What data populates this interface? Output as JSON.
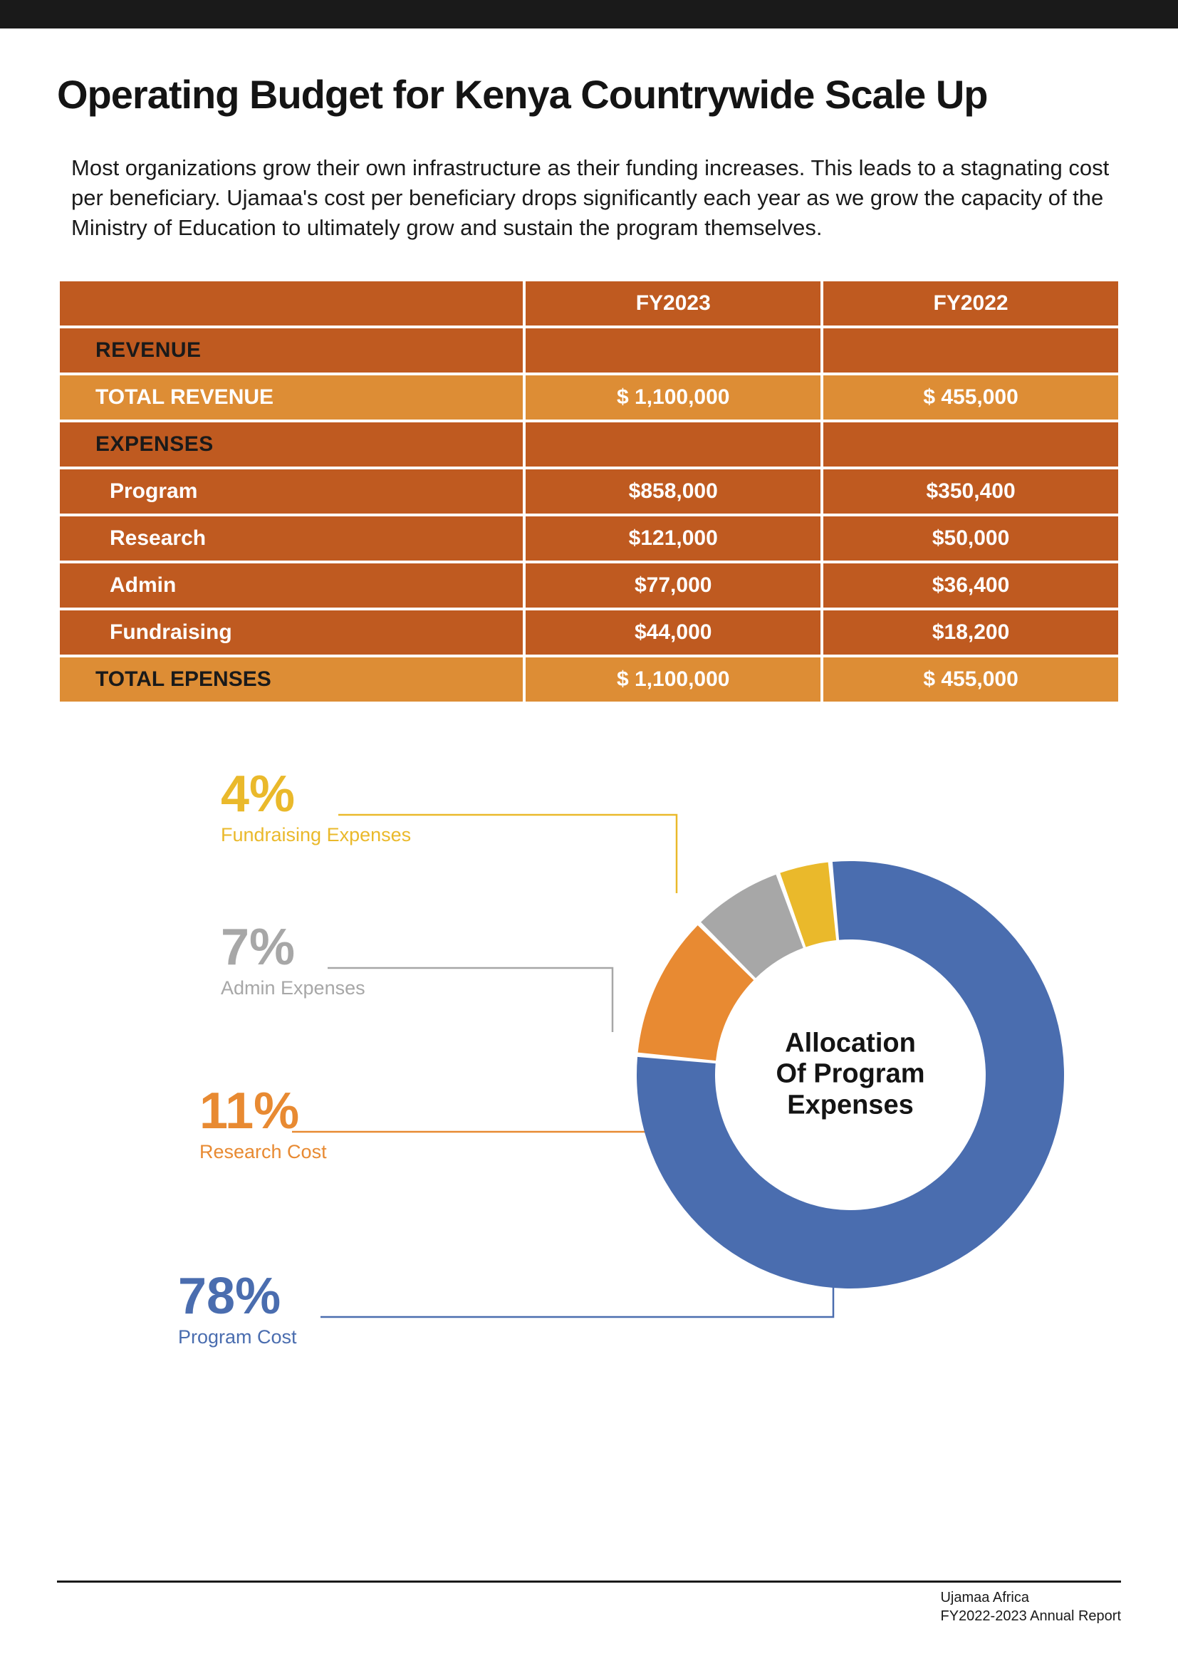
{
  "title": "Operating Budget for Kenya Countrywide Scale Up",
  "intro": "Most organizations grow their own infrastructure as their funding increases. This leads to a stagnating cost per beneficiary. Ujamaa's cost per beneficiary drops significantly each year as we grow the capacity of the Ministry of Education to ultimately grow and sustain the program themselves.",
  "table": {
    "colors": {
      "dark": "#bf5a20",
      "light": "#dd8d35",
      "text_dark": "#1a1a1a",
      "text_light": "#ffffff"
    },
    "header": {
      "y1": "FY2023",
      "y2": "FY2022"
    },
    "revenue_label": "REVENUE",
    "total_revenue": {
      "label": "TOTAL REVENUE",
      "y1": "$ 1,100,000",
      "y2": "$ 455,000"
    },
    "expenses_label": "EXPENSES",
    "expenses": [
      {
        "label": "Program",
        "y1": "$858,000",
        "y2": "$350,400"
      },
      {
        "label": "Research",
        "y1": "$121,000",
        "y2": "$50,000"
      },
      {
        "label": "Admin",
        "y1": "$77,000",
        "y2": "$36,400"
      },
      {
        "label": "Fundraising",
        "y1": "$44,000",
        "y2": "$18,200"
      }
    ],
    "total_expenses": {
      "label": "TOTAL EPENSES",
      "y1": "$ 1,100,000",
      "y2": "$ 455,000"
    }
  },
  "donut": {
    "title_line1": "Allocation",
    "title_line2": "Of Program",
    "title_line3": "Expenses",
    "outer_radius": 300,
    "inner_radius": 190,
    "background": "#ffffff",
    "slices": [
      {
        "key": "program",
        "pct": 78,
        "label": "Program Cost",
        "color": "#4a6daf",
        "callout_pct": "78%"
      },
      {
        "key": "research",
        "pct": 11,
        "label": "Research Cost",
        "color": "#e88a32",
        "callout_pct": "11%"
      },
      {
        "key": "admin",
        "pct": 7,
        "label": "Admin Expenses",
        "color": "#a7a7a7",
        "callout_pct": "7%"
      },
      {
        "key": "fundraising",
        "pct": 4,
        "label": "Fundraising Expenses",
        "color": "#eab92b",
        "callout_pct": "4%"
      }
    ]
  },
  "footer": {
    "line1": "Ujamaa Africa",
    "line2": "FY2022-2023 Annual Report"
  }
}
